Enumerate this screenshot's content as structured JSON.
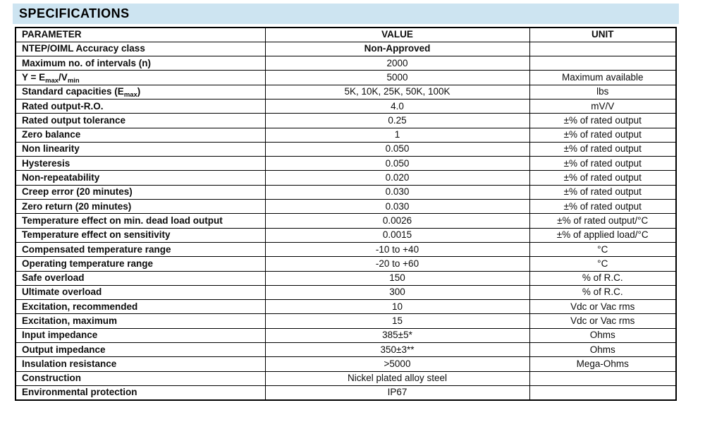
{
  "title": "SPECIFICATIONS",
  "colors": {
    "banner_bg": "#cde4f1",
    "border": "#000000"
  },
  "table": {
    "headers": [
      "PARAMETER",
      "VALUE",
      "UNIT"
    ],
    "rows": [
      {
        "parameter": "NTEP/OIML Accuracy class",
        "value": "Non-Approved",
        "unit": "",
        "value_bold": true
      },
      {
        "parameter": "Maximum no. of intervals (n)",
        "value": "2000",
        "unit": ""
      },
      {
        "parameter": "Y = E[max]/V[min]",
        "value": "5000",
        "unit": "Maximum available"
      },
      {
        "parameter": "Standard capacities (E[max])",
        "value": "5K, 10K, 25K, 50K, 100K",
        "unit": "lbs"
      },
      {
        "parameter": "Rated output-R.O.",
        "value": "4.0",
        "unit": "mV/V"
      },
      {
        "parameter": "Rated output tolerance",
        "value": "0.25",
        "unit": "±% of rated output"
      },
      {
        "parameter": "Zero balance",
        "value": "1",
        "unit": "±% of rated output"
      },
      {
        "parameter": "Non linearity",
        "value": "0.050",
        "unit": "±% of rated output"
      },
      {
        "parameter": "Hysteresis",
        "value": "0.050",
        "unit": "±% of rated output"
      },
      {
        "parameter": "Non-repeatability",
        "value": "0.020",
        "unit": "±% of rated output"
      },
      {
        "parameter": "Creep error (20 minutes)",
        "value": "0.030",
        "unit": "±% of rated output"
      },
      {
        "parameter": "Zero return (20 minutes)",
        "value": "0.030",
        "unit": "±% of rated output"
      },
      {
        "parameter": "Temperature effect on min. dead load output",
        "value": "0.0026",
        "unit": "±% of rated output/°C"
      },
      {
        "parameter": "Temperature effect on sensitivity",
        "value": "0.0015",
        "unit": "±% of applied load/°C"
      },
      {
        "parameter": "Compensated temperature range",
        "value": "-10 to +40",
        "unit": "°C"
      },
      {
        "parameter": "Operating temperature range",
        "value": "-20 to +60",
        "unit": "°C"
      },
      {
        "parameter": "Safe overload",
        "value": "150",
        "unit": "% of R.C."
      },
      {
        "parameter": "Ultimate overload",
        "value": "300",
        "unit": "% of R.C."
      },
      {
        "parameter": "Excitation, recommended",
        "value": "10",
        "unit": "Vdc or Vac rms"
      },
      {
        "parameter": "Excitation, maximum",
        "value": "15",
        "unit": "Vdc or Vac rms"
      },
      {
        "parameter": "Input impedance",
        "value": "385±5*",
        "unit": "Ohms"
      },
      {
        "parameter": "Output impedance",
        "value": "350±3**",
        "unit": "Ohms"
      },
      {
        "parameter": "Insulation resistance",
        "value": ">5000",
        "unit": "Mega-Ohms"
      },
      {
        "parameter": "Construction",
        "value": "Nickel plated alloy steel",
        "unit": ""
      },
      {
        "parameter": "Environmental protection",
        "value": "IP67",
        "unit": ""
      }
    ]
  }
}
